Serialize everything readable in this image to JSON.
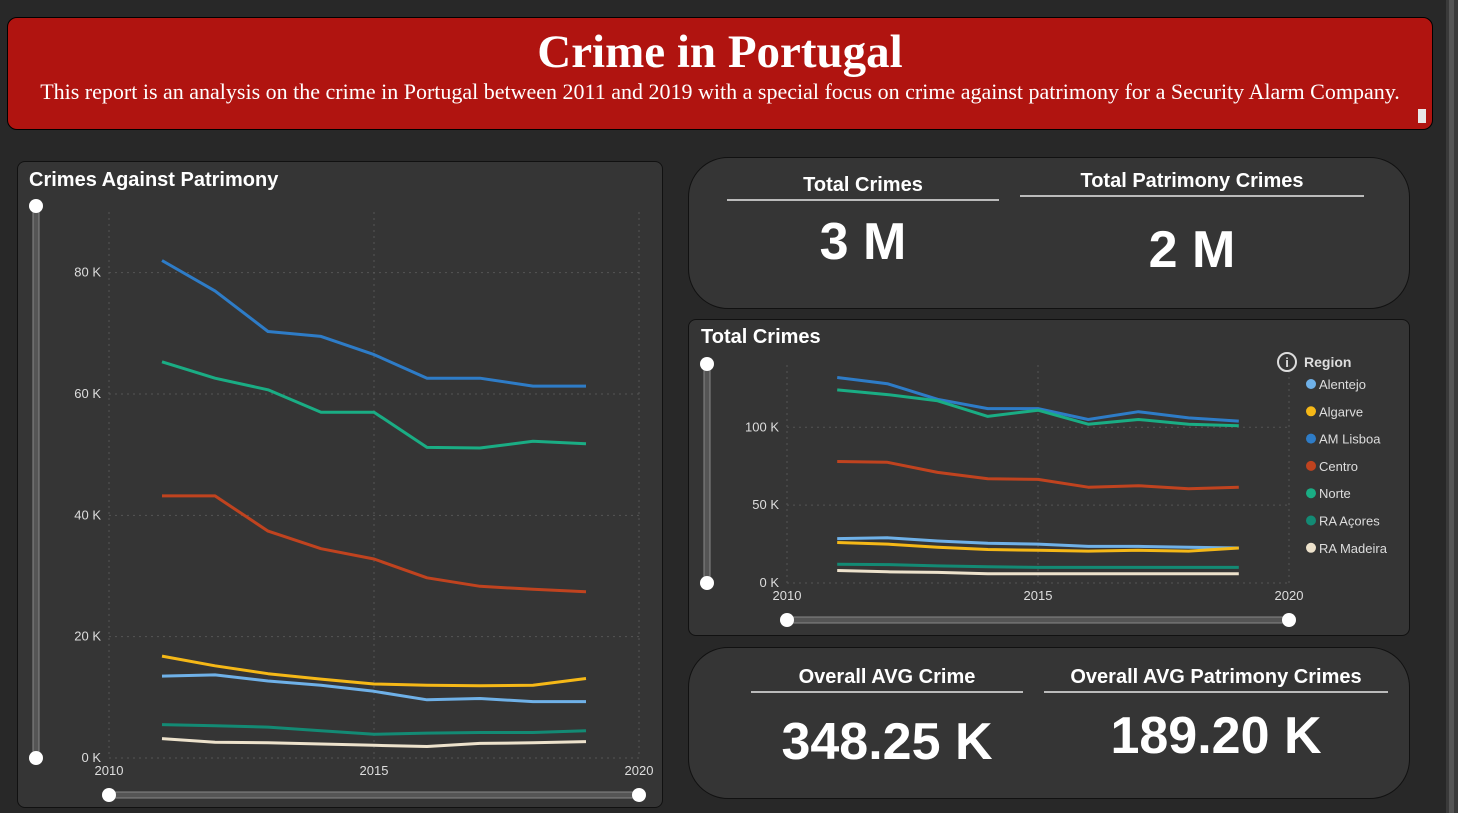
{
  "header": {
    "title": "Crime in Portugal",
    "subtitle": "This report is an analysis on the crime in Portugal between 2011 and 2019 with a special focus on crime against patrimony for a Security Alarm Company."
  },
  "kpis": {
    "top": [
      {
        "label": "Total Crimes",
        "value": "3 M"
      },
      {
        "label": "Total Patrimony Crimes",
        "value": "2 M"
      }
    ],
    "bottom": [
      {
        "label": "Overall AVG Crime",
        "value": "348.25 K"
      },
      {
        "label": "Overall AVG Patrimony Crimes",
        "value": "189.20 K"
      }
    ]
  },
  "legend": {
    "title": "Region",
    "info_icon": "info-circle-icon",
    "items": [
      {
        "name": "Alentejo",
        "color": "#6fb1e8"
      },
      {
        "name": "Algarve",
        "color": "#f5b817"
      },
      {
        "name": "AM Lisboa",
        "color": "#2e7cc7"
      },
      {
        "name": "Centro",
        "color": "#c0431f"
      },
      {
        "name": "Norte",
        "color": "#1aad84"
      },
      {
        "name": "RA Açores",
        "color": "#138a74"
      },
      {
        "name": "RA Madeira",
        "color": "#ede2cc"
      }
    ]
  },
  "chart_data": [
    {
      "type": "line",
      "title": "Crimes Against Patrimony",
      "xlim": [
        2010,
        2020
      ],
      "ylim": [
        0,
        90000
      ],
      "xticks": [
        {
          "value": 2010,
          "label": "2010"
        },
        {
          "value": 2015,
          "label": "2015"
        },
        {
          "value": 2020,
          "label": "2020"
        }
      ],
      "yticks": [
        {
          "value": 0,
          "label": "0 K"
        },
        {
          "value": 20000,
          "label": "20 K"
        },
        {
          "value": 40000,
          "label": "40 K"
        },
        {
          "value": 60000,
          "label": "60 K"
        },
        {
          "value": 80000,
          "label": "80 K"
        }
      ],
      "grid": true,
      "x": [
        2011,
        2012,
        2013,
        2014,
        2015,
        2016,
        2017,
        2018,
        2019
      ],
      "series": [
        {
          "name": "AM Lisboa",
          "color": "#2e7cc7",
          "values": [
            82000,
            77000,
            70300,
            69500,
            66500,
            62600,
            62600,
            61300,
            61300
          ]
        },
        {
          "name": "Norte",
          "color": "#1aad84",
          "values": [
            65300,
            62600,
            60700,
            57000,
            57000,
            51200,
            51100,
            52200,
            51800
          ]
        },
        {
          "name": "Centro",
          "color": "#c0431f",
          "values": [
            43200,
            43200,
            37400,
            34500,
            32800,
            29700,
            28300,
            27800,
            27400
          ]
        },
        {
          "name": "Algarve",
          "color": "#f5b817",
          "values": [
            16800,
            15200,
            13900,
            13000,
            12200,
            12000,
            11900,
            12000,
            13100
          ]
        },
        {
          "name": "Alentejo",
          "color": "#6fb1e8",
          "values": [
            13500,
            13700,
            12700,
            12000,
            11000,
            9600,
            9800,
            9300,
            9300
          ]
        },
        {
          "name": "RA Açores",
          "color": "#138a74",
          "values": [
            5500,
            5300,
            5100,
            4500,
            3900,
            4100,
            4200,
            4200,
            4500
          ]
        },
        {
          "name": "RA Madeira",
          "color": "#ede2cc",
          "values": [
            3200,
            2600,
            2500,
            2300,
            2100,
            1900,
            2400,
            2500,
            2700
          ]
        }
      ]
    },
    {
      "type": "line",
      "title": "Total Crimes",
      "xlim": [
        2010,
        2020
      ],
      "ylim": [
        0,
        140000
      ],
      "xticks": [
        {
          "value": 2010,
          "label": "2010"
        },
        {
          "value": 2015,
          "label": "2015"
        },
        {
          "value": 2020,
          "label": "2020"
        }
      ],
      "yticks": [
        {
          "value": 0,
          "label": "0 K"
        },
        {
          "value": 50000,
          "label": "50 K"
        },
        {
          "value": 100000,
          "label": "100 K"
        }
      ],
      "grid": true,
      "legend_position": "right",
      "x": [
        2011,
        2012,
        2013,
        2014,
        2015,
        2016,
        2017,
        2018,
        2019
      ],
      "series": [
        {
          "name": "AM Lisboa",
          "color": "#2e7cc7",
          "values": [
            132000,
            128000,
            118000,
            112000,
            112000,
            105000,
            110000,
            106000,
            104000
          ]
        },
        {
          "name": "Norte",
          "color": "#1aad84",
          "values": [
            124000,
            121000,
            117000,
            107000,
            111000,
            102000,
            105000,
            102000,
            101000
          ]
        },
        {
          "name": "Centro",
          "color": "#c0431f",
          "values": [
            78000,
            77500,
            71000,
            67000,
            66500,
            61500,
            62500,
            60500,
            61500
          ]
        },
        {
          "name": "Alentejo",
          "color": "#6fb1e8",
          "values": [
            28500,
            29000,
            27000,
            25500,
            25000,
            23500,
            23500,
            23000,
            22500
          ]
        },
        {
          "name": "Algarve",
          "color": "#f5b817",
          "values": [
            26000,
            25000,
            23000,
            21500,
            21000,
            20500,
            21000,
            20500,
            22500
          ]
        },
        {
          "name": "RA Açores",
          "color": "#138a74",
          "values": [
            12000,
            11800,
            11000,
            10500,
            10000,
            10000,
            10000,
            10000,
            10000
          ]
        },
        {
          "name": "RA Madeira",
          "color": "#ede2cc",
          "values": [
            8000,
            7200,
            6800,
            6000,
            6000,
            6000,
            6000,
            6000,
            6000
          ]
        }
      ]
    }
  ]
}
